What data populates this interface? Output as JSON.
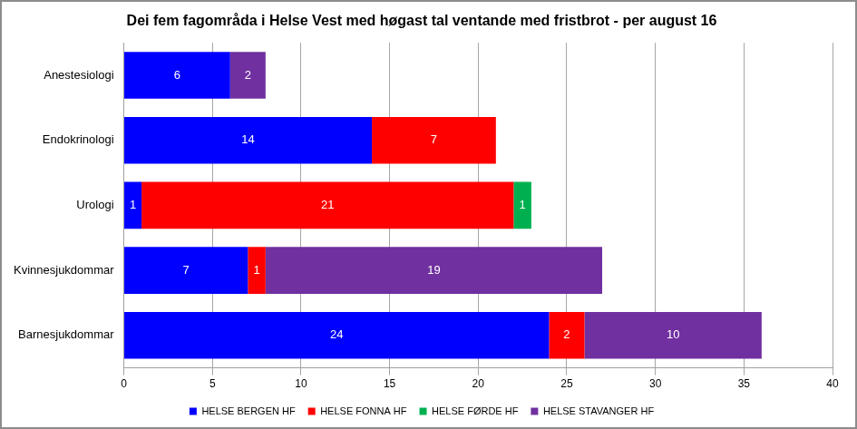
{
  "chart_data": {
    "type": "bar",
    "title": "Dei fem fagområda i Helse Vest med høgast tal ventande med fristbrot - per august 16",
    "orientation": "horizontal",
    "stacked": true,
    "data_labels": true,
    "grid": true,
    "legend": "bottom",
    "categories": [
      "Anestesiologi",
      "Endokrinologi",
      "Urologi",
      "Kvinnesjukdommar",
      "Barnesjukdommar"
    ],
    "series": [
      {
        "name": "HELSE BERGEN HF",
        "color": "#0000ff",
        "values": [
          6,
          14,
          1,
          7,
          24
        ]
      },
      {
        "name": "HELSE FONNA HF",
        "color": "#ff0000",
        "values": [
          null,
          7,
          21,
          1,
          2
        ]
      },
      {
        "name": "HELSE FØRDE HF",
        "color": "#00b050",
        "values": [
          null,
          null,
          1,
          null,
          null
        ]
      },
      {
        "name": "HELSE STAVANGER HF",
        "color": "#7030a0",
        "values": [
          2,
          null,
          null,
          19,
          10
        ]
      }
    ],
    "xlim": [
      0,
      40
    ],
    "xticks": [
      0,
      5,
      10,
      15,
      20,
      25,
      30,
      35,
      40
    ]
  }
}
